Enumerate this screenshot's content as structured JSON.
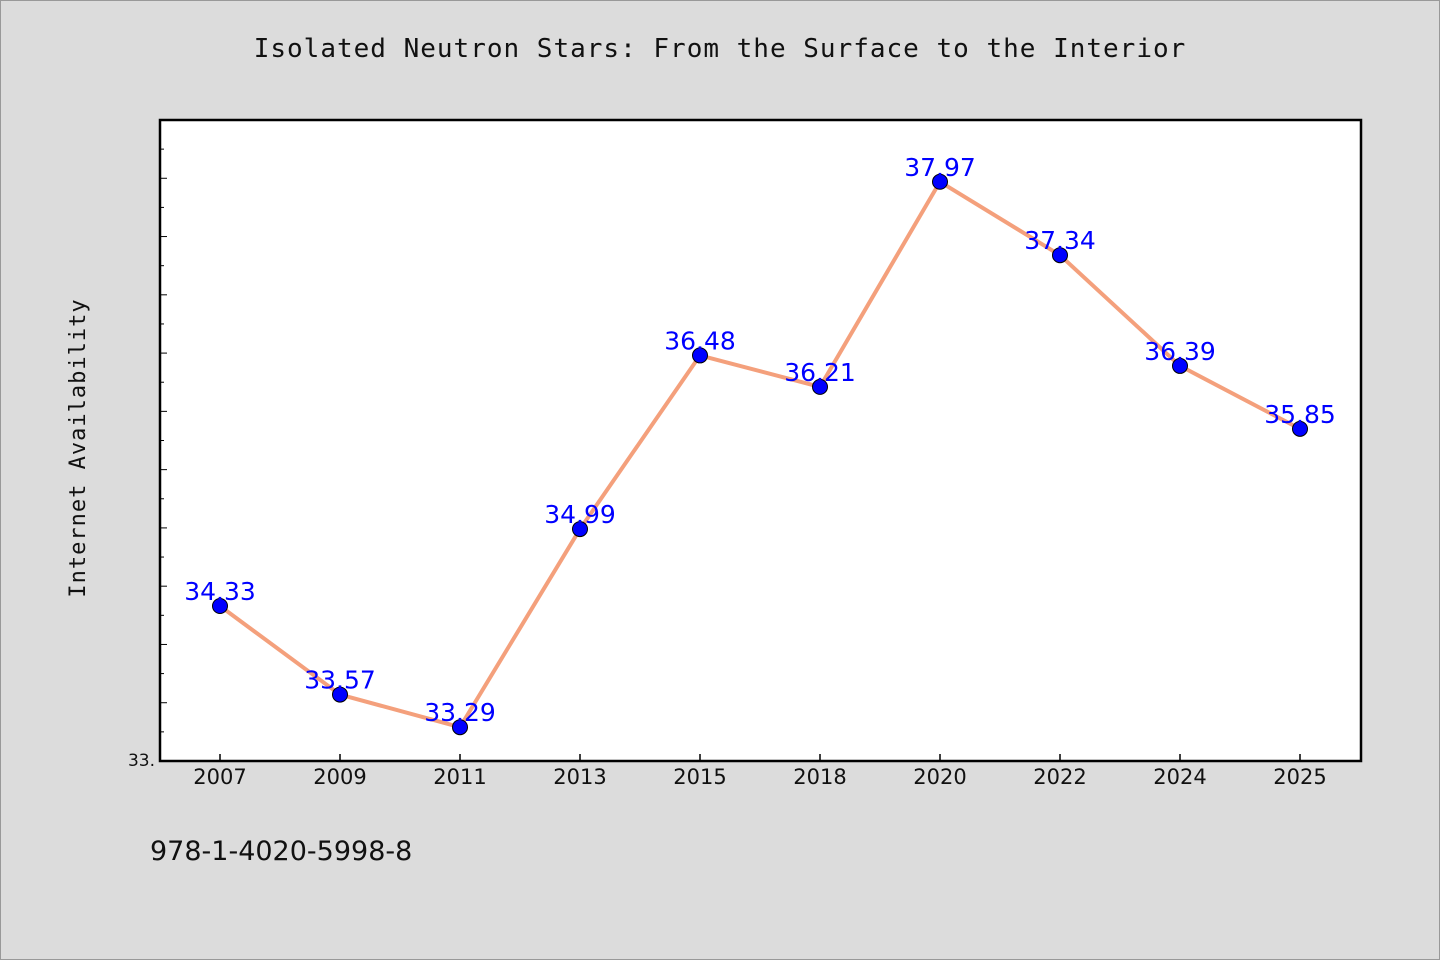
{
  "chart_data": {
    "type": "line",
    "title": "Isolated Neutron Stars: From the Surface to the Interior",
    "ylabel": "Internet Availability",
    "xlabel": "",
    "ytick_label": "33.",
    "categories": [
      "2007",
      "2009",
      "2011",
      "2013",
      "2015",
      "2018",
      "2020",
      "2022",
      "2024",
      "2025"
    ],
    "series": [
      {
        "values": [
          34.33,
          33.57,
          33.29,
          34.99,
          36.48,
          36.21,
          37.97,
          37.34,
          36.39,
          35.85
        ],
        "labels": [
          "34.33",
          "33.57",
          "33.29",
          "34.99",
          "36.48",
          "36.21",
          "37.97",
          "37.34",
          "36.39",
          "35.85"
        ]
      }
    ],
    "ylim": [
      33.0,
      38.5
    ],
    "grid": false,
    "legend": "none",
    "colors": {
      "line": "#f4a07c",
      "marker": "#0000ff",
      "label": "#0000ff",
      "plot_bg": "#ffffff",
      "page_bg": "#dcdcdc"
    }
  },
  "footer": {
    "code": "978-1-4020-5998-8"
  }
}
